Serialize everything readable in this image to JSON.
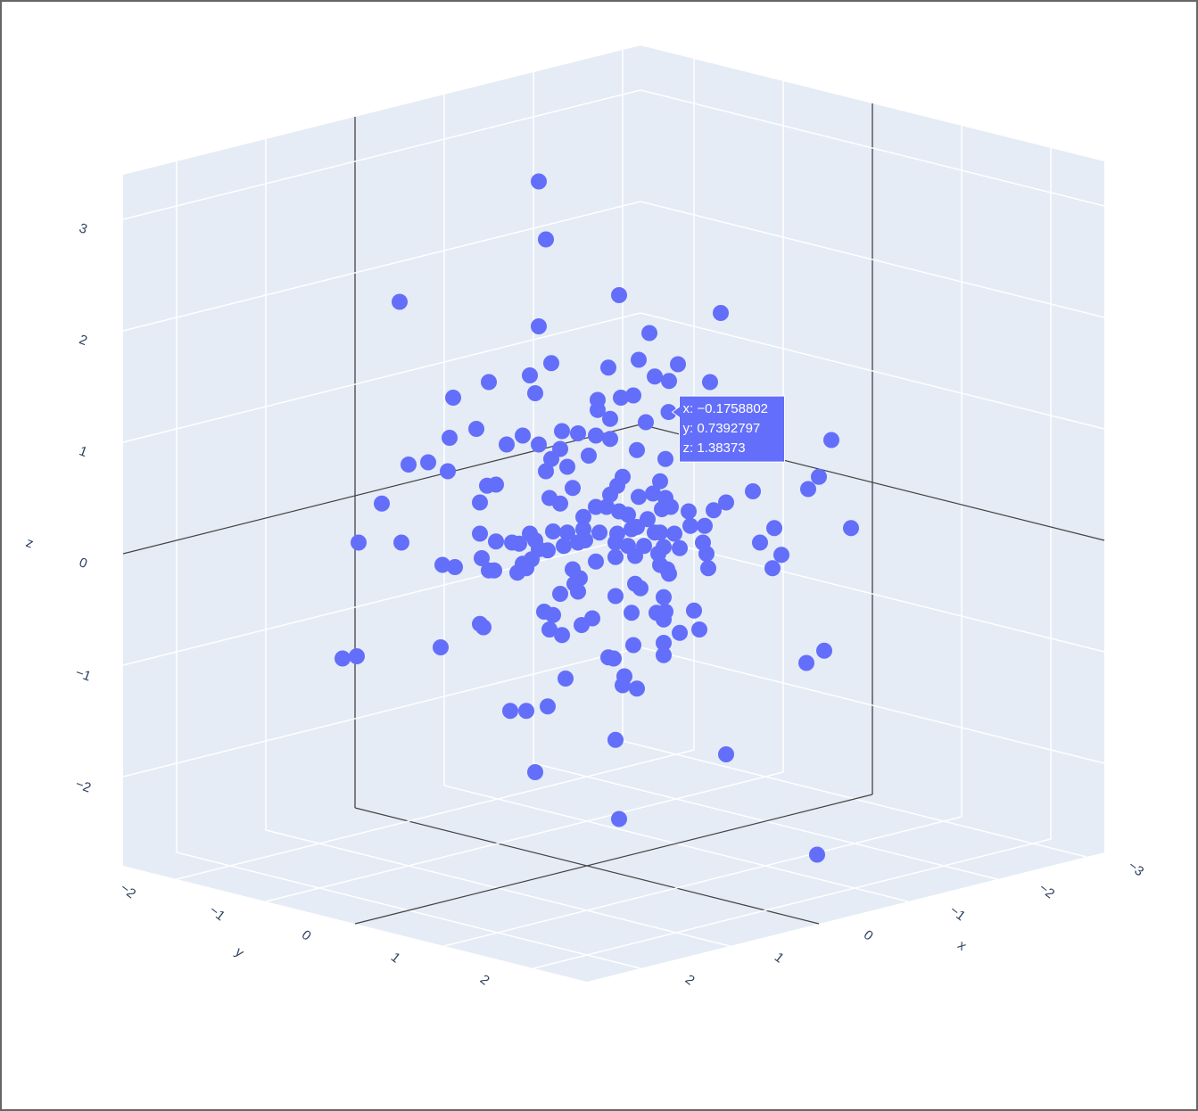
{
  "chart_data": {
    "type": "scatter3d",
    "color": "#636efa",
    "xlabel": "x",
    "ylabel": "y",
    "zlabel": "z",
    "xlim": [
      -3.2,
      2.6
    ],
    "ylim": [
      -2.6,
      2.6
    ],
    "zlim": [
      -2.8,
      3.4
    ],
    "xticks": [
      {
        "value": -3,
        "label": "−3"
      },
      {
        "value": -2,
        "label": "−2"
      },
      {
        "value": -1,
        "label": "−1"
      },
      0,
      1,
      2
    ],
    "yticks": [
      {
        "value": -2,
        "label": "−2"
      },
      {
        "value": -1,
        "label": "−1"
      },
      0,
      1,
      2
    ],
    "zticks": [
      {
        "value": -2,
        "label": "−2"
      },
      {
        "value": -1,
        "label": "−1"
      },
      0,
      1,
      2,
      3
    ],
    "x": [
      0.27,
      0.23,
      1.05,
      -0.18,
      -0.75,
      0.27,
      -0.35,
      0.2,
      -0.12,
      -0.29,
      -0.51,
      -0.38,
      -0.46,
      -0.69,
      0.32,
      0.55,
      0.29,
      0.75,
      -0.06,
      -0.19,
      -0.26,
      -0.13,
      -0.06,
      -0.33,
      0.62,
      0.77,
      0.05,
      -0.05,
      -0.13,
      0.14,
      0.36,
      0.45,
      0.27,
      0.15,
      -0.01,
      -0.28,
      -0.44,
      -1.37,
      0.2,
      1.0,
      0.89,
      0.78,
      0.23,
      0.11,
      -0.2,
      -0.17,
      -0.41,
      0.56,
      0.51,
      -0.93,
      -1.3,
      -1.24,
      0.08,
      -0.29,
      -0.05,
      -0.13,
      -0.37,
      -0.44,
      -0.47,
      0.6,
      1.15,
      0.15,
      0.21,
      -0.11,
      -0.18,
      -0.23,
      -0.42,
      -0.57,
      -0.71,
      -0.78,
      0.02,
      -0.34,
      -0.28,
      -0.17,
      -0.07,
      0.02,
      0.32,
      0.38,
      0.51,
      0.6,
      0.42,
      0.29,
      0.19,
      0.11,
      0.13,
      0.05,
      0.01,
      -0.16,
      -0.25,
      -0.38,
      -0.41,
      -0.49,
      -0.58,
      -0.66,
      -1.05,
      -1.48,
      1.28,
      1.04,
      0.27,
      0.22,
      -0.23,
      -0.32,
      -0.43,
      -0.52,
      -0.65,
      -0.97,
      -1.09,
      0.59,
      0.31,
      0.36,
      0.34,
      0.08,
      -0.05,
      -0.16,
      -0.27,
      -0.4,
      -0.67,
      -0.45,
      -0.41,
      -0.46,
      -0.68,
      -1.04,
      0.81,
      0.74,
      0.55,
      0.52,
      0.39,
      0.04,
      0.07,
      0.05,
      0.15,
      -0.16,
      -0.27,
      -0.3,
      -0.43,
      0.24,
      0.19,
      -0.03,
      -0.25,
      -0.39,
      -0.44,
      -0.43,
      -0.6,
      0.58,
      0.6,
      0.03,
      0.21,
      0.14,
      -0.52,
      -0.63,
      0.82,
      -0.26,
      -0.43,
      -1.33,
      -1.23,
      1.37,
      1.29,
      -0.12,
      -0.15,
      -0.43,
      -0.21,
      0.12,
      -0.2,
      -0.28,
      0.43,
      0.34,
      0.22,
      -0.16,
      -0.78,
      0.29,
      -0.18,
      -1.29,
      -0.1758802
    ],
    "y": [
      -0.27,
      -0.23,
      -1.05,
      0.18,
      0.75,
      -0.27,
      0.35,
      -0.2,
      0.12,
      0.29,
      0.51,
      0.38,
      0.46,
      0.69,
      -0.32,
      -0.55,
      -0.29,
      -0.75,
      0.06,
      0.19,
      0.26,
      0.13,
      0.06,
      0.33,
      -0.62,
      -0.77,
      -0.05,
      0.05,
      0.13,
      -0.14,
      -0.36,
      -0.45,
      -0.27,
      -0.15,
      0.01,
      0.28,
      0.44,
      1.37,
      -0.2,
      -1.0,
      -0.89,
      -0.78,
      -0.23,
      -0.11,
      0.2,
      0.17,
      0.41,
      -0.56,
      -0.51,
      0.93,
      1.3,
      1.24,
      -0.08,
      0.29,
      0.05,
      0.13,
      0.37,
      0.44,
      0.47,
      -0.6,
      -1.15,
      -0.15,
      -0.21,
      0.11,
      0.18,
      0.23,
      0.42,
      0.57,
      0.71,
      0.78,
      -0.02,
      0.34,
      0.28,
      0.17,
      0.07,
      -0.02,
      -0.32,
      -0.38,
      -0.51,
      -0.6,
      -0.42,
      -0.29,
      -0.19,
      -0.11,
      -0.13,
      -0.05,
      -0.01,
      0.16,
      0.25,
      0.38,
      0.41,
      0.49,
      0.58,
      0.66,
      1.05,
      1.48,
      -1.28,
      -1.04,
      -0.27,
      -0.22,
      0.23,
      0.32,
      0.43,
      0.52,
      0.65,
      0.97,
      1.09,
      -0.59,
      -0.31,
      -0.36,
      -0.34,
      -0.08,
      0.05,
      0.16,
      0.27,
      0.4,
      0.67,
      0.45,
      0.41,
      0.46,
      0.68,
      1.04,
      -0.81,
      -0.74,
      -0.55,
      -0.52,
      -0.39,
      -0.04,
      -0.07,
      -0.05,
      -0.15,
      0.16,
      0.27,
      0.3,
      0.43,
      -0.24,
      -0.19,
      0.03,
      0.25,
      0.39,
      0.44,
      0.43,
      0.6,
      -0.58,
      -0.6,
      -0.03,
      -0.21,
      -0.14,
      0.52,
      0.63,
      -0.82,
      0.26,
      0.43,
      1.33,
      1.23,
      -1.37,
      -1.29,
      0.12,
      0.15,
      0.43,
      0.21,
      -0.12,
      0.2,
      0.28,
      -0.43,
      -0.34,
      -0.22,
      0.16,
      0.78,
      -0.29,
      0.18,
      1.29,
      0.7392797
    ],
    "z": [
      3.34,
      2.82,
      2.26,
      2.32,
      2.16,
      2.04,
      1.98,
      1.71,
      1.67,
      1.74,
      1.7,
      1.59,
      1.55,
      1.54,
      1.6,
      1.54,
      1.44,
      1.4,
      1.38,
      1.4,
      1.42,
      1.21,
      1.29,
      1.18,
      1.12,
      1.04,
      1.08,
      1.06,
      1.03,
      1.1,
      1.06,
      0.98,
      0.98,
      0.94,
      0.88,
      0.93,
      0.85,
      1.02,
      0.85,
      0.8,
      0.82,
      0.74,
      0.74,
      0.78,
      0.69,
      0.61,
      0.65,
      0.61,
      0.62,
      0.56,
      0.69,
      0.58,
      0.59,
      0.51,
      0.42,
      0.53,
      0.54,
      0.5,
      0.42,
      0.46,
      0.45,
      0.45,
      0.5,
      0.42,
      0.38,
      0.35,
      0.4,
      0.38,
      0.39,
      0.46,
      0.33,
      0.31,
      0.24,
      0.18,
      0.19,
      0.22,
      0.18,
      0.09,
      0.11,
      0.18,
      0.1,
      0.12,
      0.2,
      0.19,
      0.07,
      0.1,
      0.12,
      0.1,
      0.22,
      0.19,
      0.19,
      0.18,
      0.25,
      0.25,
      0.23,
      0.23,
      0.1,
      0.1,
      0.04,
      0.03,
      0.07,
      0.07,
      0.06,
      0.05,
      0.1,
      0.1,
      -0.01,
      -0.04,
      -0.05,
      -0.09,
      -0.13,
      -0.14,
      -0.07,
      -0.03,
      -0.02,
      0,
      0,
      -0.14,
      -0.1,
      -0.18,
      -0.13,
      -0.13,
      -0.1,
      -0.12,
      -0.15,
      -0.15,
      -0.17,
      -0.22,
      -0.27,
      -0.34,
      -0.36,
      -0.38,
      -0.27,
      -0.31,
      -0.39,
      -0.52,
      -0.55,
      -0.58,
      -0.53,
      -0.53,
      -0.52,
      -0.59,
      -0.51,
      -0.66,
      -0.63,
      -0.64,
      -0.68,
      -0.73,
      -0.71,
      -0.68,
      -0.84,
      -0.82,
      -0.8,
      -0.87,
      -0.98,
      -0.94,
      -0.92,
      -0.93,
      -0.94,
      -0.91,
      -1.1,
      -1.12,
      -1.18,
      -1.21,
      -1.41,
      -1.41,
      -1.37,
      -1.67,
      -1.8,
      -1.96,
      -2.38,
      -2.7,
      1.38373
    ],
    "hover": [
      "x: −0.1758802",
      "y: 0.7392797",
      "z: 1.38373"
    ]
  }
}
